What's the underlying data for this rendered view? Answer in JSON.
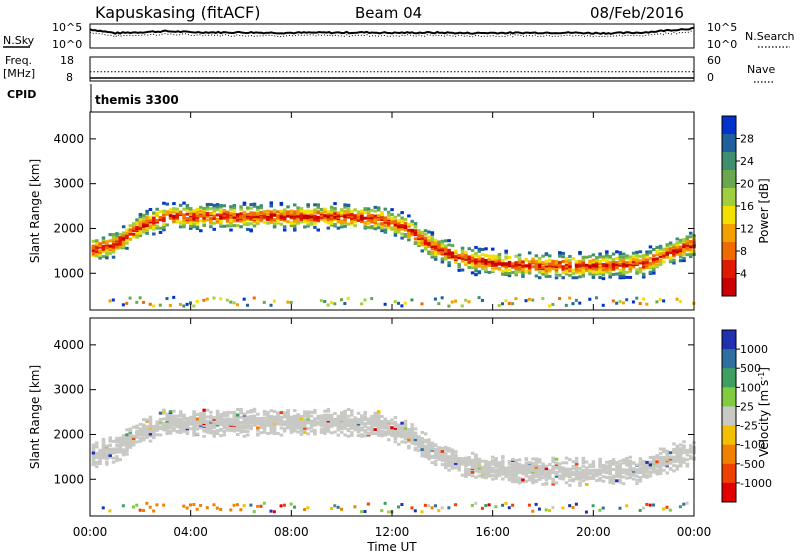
{
  "header": {
    "station": "Kapuskasing (fitACF)",
    "beam": "Beam 04",
    "date": "08/Feb/2016"
  },
  "left_labels": {
    "nsky": "N.Sky",
    "freq": "Freq.",
    "freq_unit": "[MHz]",
    "cpid": "CPID"
  },
  "right_labels": {
    "nsearch": "N.Search",
    "nave": "Nave"
  },
  "cpid_text": "themis 3300",
  "chart_data": [
    {
      "type": "line",
      "name": "noise",
      "left_ticks": [
        "10^5",
        "10^0"
      ],
      "right_ticks": [
        "10^5",
        "10^0"
      ],
      "x": [
        0,
        1,
        2,
        3,
        4,
        5,
        6,
        7,
        8,
        9,
        10,
        11,
        12,
        13,
        14,
        15,
        16,
        17,
        18,
        19,
        20,
        21,
        22,
        23,
        24
      ],
      "y_log_norm": [
        0.78,
        0.62,
        0.66,
        0.7,
        0.66,
        0.65,
        0.65,
        0.64,
        0.63,
        0.64,
        0.64,
        0.65,
        0.63,
        0.64,
        0.64,
        0.62,
        0.63,
        0.63,
        0.64,
        0.64,
        0.62,
        0.62,
        0.65,
        0.74,
        0.82
      ]
    },
    {
      "type": "line",
      "name": "frequency-nave",
      "left_ticks": [
        "18",
        "8"
      ],
      "right_ticks": [
        "60",
        "0"
      ],
      "freq_mhz": 10.5,
      "nave": 23
    },
    {
      "type": "heatmap",
      "title": "Power",
      "ylabel": "Slant Range [km]",
      "ylim": [
        180,
        4600
      ],
      "xlim": [
        0,
        24
      ],
      "yticks": [
        1000,
        2000,
        3000,
        4000
      ],
      "colorbar_label": "Power [dB]",
      "colorbar_ticks": [
        "28",
        "24",
        "20",
        "16",
        "12",
        "8",
        "4"
      ],
      "colors": [
        "#0033cc",
        "#1f5f9c",
        "#3f8f6f",
        "#6aa84f",
        "#9fcf3f",
        "#f2e000",
        "#f2a000",
        "#ef6a00",
        "#e01a00",
        "#c80000"
      ],
      "band_center_km": [
        [
          0,
          1550
        ],
        [
          1,
          1700
        ],
        [
          2,
          2100
        ],
        [
          3,
          2300
        ],
        [
          6,
          2300
        ],
        [
          10,
          2300
        ],
        [
          11.5,
          2250
        ],
        [
          12.5,
          2050
        ],
        [
          13.5,
          1650
        ],
        [
          14.5,
          1400
        ],
        [
          16,
          1250
        ],
        [
          18,
          1200
        ],
        [
          20,
          1200
        ],
        [
          22,
          1250
        ],
        [
          23,
          1500
        ],
        [
          24,
          1700
        ]
      ]
    },
    {
      "type": "heatmap",
      "title": "Velocity",
      "ylabel": "Slant Range [km]",
      "xlabel": "Time UT",
      "ylim": [
        180,
        4600
      ],
      "xlim": [
        0,
        24
      ],
      "yticks": [
        1000,
        2000,
        3000,
        4000
      ],
      "xticks": [
        "00:00",
        "04:00",
        "08:00",
        "12:00",
        "16:00",
        "20:00",
        "00:00"
      ],
      "colorbar_label": "Velocity",
      "colorbar_ticks": [
        "1000",
        "500",
        "100",
        "25",
        "-25",
        "-100",
        "-500",
        "-1000"
      ],
      "colors": [
        "#2030b0",
        "#2f6fa0",
        "#3f9f60",
        "#7fcc40",
        "#c8c8c4",
        "#f2c000",
        "#f28000",
        "#ee4000",
        "#e00000"
      ],
      "ground_scatter": "grey"
    }
  ]
}
